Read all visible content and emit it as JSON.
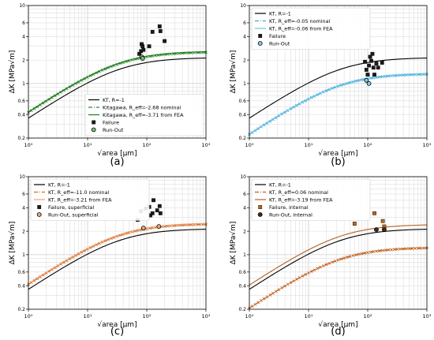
{
  "chart_data": [
    {
      "type": "scatter",
      "panel_label": "(a)",
      "xlabel": "√area [μm]",
      "ylabel": "ΔK [MPa√m]",
      "x_scale": "log",
      "y_scale": "log",
      "xlim": [
        1,
        1000
      ],
      "ylim": [
        0.2,
        10
      ],
      "x_ticks": [
        {
          "v": 1,
          "t": "10⁰"
        },
        {
          "v": 10,
          "t": "10¹"
        },
        {
          "v": 100,
          "t": "10²"
        },
        {
          "v": 1000,
          "t": "10³"
        }
      ],
      "y_ticks": [
        {
          "v": 0.2,
          "t": "0.2"
        },
        {
          "v": 0.4,
          "t": "0.4"
        },
        {
          "v": 0.6,
          "t": "0.6"
        },
        {
          "v": 1,
          "t": "1"
        },
        {
          "v": 2,
          "t": "2"
        },
        {
          "v": 4,
          "t": "4"
        },
        {
          "v": 6,
          "t": "6"
        },
        {
          "v": 10,
          "t": "10"
        }
      ],
      "grid": true,
      "legend_position": "lower-right",
      "series": [
        {
          "name": "KT, R=-1",
          "kind": "line",
          "color": "#000000",
          "dash": "",
          "ath": 2.16,
          "a0": 0.035
        },
        {
          "name": "Kitagawa, R_eff=-2.68 nominal",
          "kind": "line",
          "color": "#2e8b2e",
          "dash": "5,2,1,2",
          "markers": "x",
          "ath": 2.55,
          "a0": 0.035
        },
        {
          "name": "Kitagawa, R_eff=-3.71 from FEA",
          "kind": "line",
          "color": "#1e7a1e",
          "dash": "",
          "ath": 2.6,
          "a0": 0.035
        },
        {
          "name": "Failure",
          "kind": "points",
          "marker": "square",
          "color": "#1a1a1a",
          "points": [
            [
              75,
              2.4
            ],
            [
              80,
              2.6
            ],
            [
              82,
              3.2
            ],
            [
              85,
              3.0
            ],
            [
              88,
              2.7
            ],
            [
              110,
              3.0
            ],
            [
              125,
              4.6
            ],
            [
              165,
              5.4
            ],
            [
              170,
              4.7
            ],
            [
              200,
              3.5
            ]
          ]
        },
        {
          "name": "Run-Out",
          "kind": "points",
          "marker": "circle",
          "color": "#7fbf7f",
          "points": [
            [
              82,
              2.2
            ],
            [
              85,
              2.1
            ]
          ]
        }
      ]
    },
    {
      "type": "scatter",
      "panel_label": "(b)",
      "xlabel": "√area [μm]",
      "ylabel": "ΔK [MPa√m]",
      "x_scale": "log",
      "y_scale": "log",
      "xlim": [
        1,
        1000
      ],
      "ylim": [
        0.2,
        10
      ],
      "x_ticks": [
        {
          "v": 1,
          "t": "10⁰"
        },
        {
          "v": 10,
          "t": "10¹"
        },
        {
          "v": 100,
          "t": "10²"
        },
        {
          "v": 1000,
          "t": "10³"
        }
      ],
      "y_ticks": [
        {
          "v": 0.2,
          "t": "0.2"
        },
        {
          "v": 0.4,
          "t": "0.4"
        },
        {
          "v": 0.6,
          "t": "0.6"
        },
        {
          "v": 1,
          "t": "1"
        },
        {
          "v": 2,
          "t": "2"
        },
        {
          "v": 4,
          "t": "4"
        },
        {
          "v": 6,
          "t": "6"
        },
        {
          "v": 10,
          "t": "10"
        }
      ],
      "grid": true,
      "legend_position": "upper-left",
      "series": [
        {
          "name": "KT, R=-1",
          "kind": "line",
          "color": "#000000",
          "dash": "",
          "ath": 2.16,
          "a0": 0.035
        },
        {
          "name": "KT, R_eff=-0.05 nominal",
          "kind": "line",
          "color": "#3aa6d8",
          "dash": "5,2,1,2",
          "markers": "x",
          "ath": 1.34,
          "a0": 0.035
        },
        {
          "name": "KT, R_eff=-0.06 from FEA",
          "kind": "line",
          "color": "#6ec4e8",
          "dash": "",
          "ath": 1.36,
          "a0": 0.035
        },
        {
          "name": "Failure",
          "kind": "points",
          "marker": "square",
          "color": "#1a1a1a",
          "points": [
            [
              90,
              1.9
            ],
            [
              95,
              1.5
            ],
            [
              100,
              1.3
            ],
            [
              105,
              1.7
            ],
            [
              110,
              2.2
            ],
            [
              115,
              1.95
            ],
            [
              120,
              2.4
            ],
            [
              125,
              1.6
            ],
            [
              130,
              1.3
            ],
            [
              140,
              1.8
            ],
            [
              150,
              1.6
            ],
            [
              175,
              1.85
            ]
          ]
        },
        {
          "name": "Run-Out",
          "kind": "points",
          "marker": "circle",
          "color": "#7fd0e8",
          "points": [
            [
              95,
              1.1
            ],
            [
              105,
              1.0
            ]
          ]
        }
      ]
    },
    {
      "type": "scatter",
      "panel_label": "(c)",
      "xlabel": "√area [μm]",
      "ylabel": "ΔK [MPa√m]",
      "x_scale": "log",
      "y_scale": "log",
      "xlim": [
        1,
        1000
      ],
      "ylim": [
        0.2,
        10
      ],
      "x_ticks": [
        {
          "v": 1,
          "t": "10⁰"
        },
        {
          "v": 10,
          "t": "10¹"
        },
        {
          "v": 100,
          "t": "10²"
        },
        {
          "v": 1000,
          "t": "10³"
        }
      ],
      "y_ticks": [
        {
          "v": 0.2,
          "t": "0.2"
        },
        {
          "v": 0.4,
          "t": "0.4"
        },
        {
          "v": 0.6,
          "t": "0.6"
        },
        {
          "v": 1,
          "t": "1"
        },
        {
          "v": 2,
          "t": "2"
        },
        {
          "v": 4,
          "t": "4"
        },
        {
          "v": 6,
          "t": "6"
        },
        {
          "v": 10,
          "t": "10"
        }
      ],
      "grid": true,
      "legend_position": "upper-left",
      "series": [
        {
          "name": "KT, R=-1",
          "kind": "line",
          "color": "#000000",
          "dash": "",
          "ath": 2.16,
          "a0": 0.035
        },
        {
          "name": "KT, R_eff=-11.0 nominal",
          "kind": "line",
          "color": "#d2691e",
          "dash": "5,2,1,2",
          "markers": "x",
          "ath": 2.5,
          "a0": 0.035
        },
        {
          "name": "KT, R_eff=-3.21 from FEA",
          "kind": "line",
          "color": "#e8a070",
          "dash": "",
          "ath": 2.55,
          "a0": 0.035
        },
        {
          "name": "Failure, superficial",
          "kind": "points",
          "marker": "square",
          "color": "#1a1a1a",
          "points": [
            [
              70,
              2.8
            ],
            [
              80,
              3.6
            ],
            [
              95,
              3.9
            ],
            [
              110,
              4.1
            ],
            [
              115,
              3.2
            ],
            [
              125,
              3.4
            ],
            [
              130,
              5.0
            ],
            [
              150,
              3.7
            ],
            [
              165,
              4.2
            ],
            [
              170,
              3.4
            ]
          ]
        },
        {
          "name": "Run-Out, superficial",
          "kind": "points",
          "marker": "circle",
          "color": "#e8a878",
          "points": [
            [
              88,
              2.2
            ],
            [
              160,
              2.3
            ]
          ]
        }
      ]
    },
    {
      "type": "scatter",
      "panel_label": "(d)",
      "xlabel": "√area [μm]",
      "ylabel": "ΔK [MPa√m]",
      "x_scale": "log",
      "y_scale": "log",
      "xlim": [
        1,
        1000
      ],
      "ylim": [
        0.2,
        10
      ],
      "x_ticks": [
        {
          "v": 1,
          "t": "10⁰"
        },
        {
          "v": 10,
          "t": "10¹"
        },
        {
          "v": 100,
          "t": "10²"
        },
        {
          "v": 1000,
          "t": "10³"
        }
      ],
      "y_ticks": [
        {
          "v": 0.2,
          "t": "0.2"
        },
        {
          "v": 0.4,
          "t": "0.4"
        },
        {
          "v": 0.6,
          "t": "0.6"
        },
        {
          "v": 1,
          "t": "1"
        },
        {
          "v": 2,
          "t": "2"
        },
        {
          "v": 4,
          "t": "4"
        },
        {
          "v": 6,
          "t": "6"
        },
        {
          "v": 10,
          "t": "10"
        }
      ],
      "grid": true,
      "legend_position": "upper-left",
      "series": [
        {
          "name": "KT, R=-1",
          "kind": "line",
          "color": "#000000",
          "dash": "",
          "ath": 2.16,
          "a0": 0.035
        },
        {
          "name": "KT, R_eff=0.06 nominal",
          "kind": "line",
          "color": "#c05a14",
          "dash": "5,2,1,2",
          "markers": "x",
          "ath": 1.24,
          "a0": 0.035
        },
        {
          "name": "KT, R_eff=-3.19 from FEA",
          "kind": "line",
          "color": "#b8601e",
          "dash": "",
          "ath": 2.45,
          "a0": 0.035
        },
        {
          "name": "Failure, internal",
          "kind": "points",
          "marker": "square",
          "color": "#b8661e",
          "points": [
            [
              60,
              2.5
            ],
            [
              130,
              3.4
            ],
            [
              180,
              2.7
            ],
            [
              190,
              2.3
            ]
          ]
        },
        {
          "name": "Run-Out, internal",
          "kind": "points",
          "marker": "circle",
          "color": "#4a2a10",
          "points": [
            [
              140,
              2.1
            ],
            [
              190,
              2.1
            ]
          ]
        }
      ]
    }
  ]
}
